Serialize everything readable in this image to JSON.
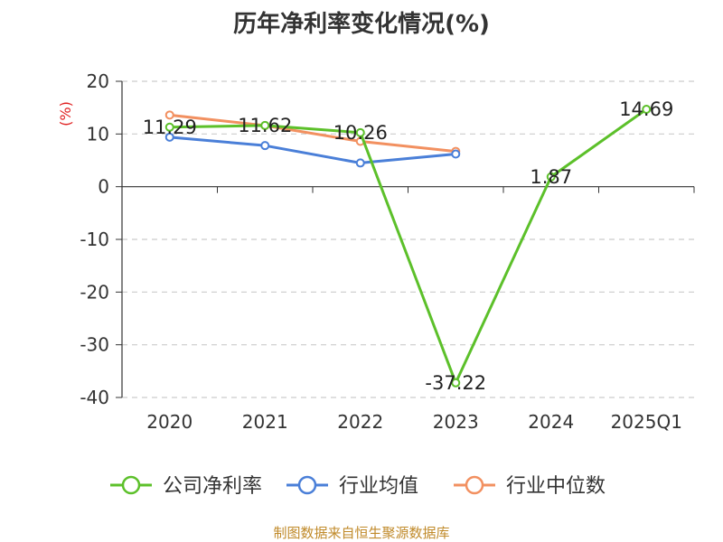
{
  "chart_data": {
    "type": "line",
    "title": "历年净利率变化情况(%)",
    "ylabel": "(%)",
    "xlabel": "",
    "categories": [
      "2020",
      "2021",
      "2022",
      "2023",
      "2024",
      "2025Q1"
    ],
    "ylim": [
      -40,
      20
    ],
    "yticks": [
      20,
      10,
      0,
      -10,
      -20,
      -30,
      -40
    ],
    "grid": true,
    "legend_position": "bottom",
    "series": [
      {
        "name": "公司净利率",
        "color": "#5cc02a",
        "values": [
          11.29,
          11.62,
          10.26,
          -37.22,
          1.87,
          14.69
        ],
        "labels": [
          "11.29",
          "11.62",
          "10.26",
          "-37.22",
          "1.87",
          "14.69"
        ]
      },
      {
        "name": "行业均值",
        "color": "#4a7fd8",
        "values": [
          9.4,
          7.8,
          4.5,
          6.2,
          null,
          null
        ]
      },
      {
        "name": "行业中位数",
        "color": "#f29060",
        "values": [
          13.6,
          11.6,
          8.6,
          6.7,
          null,
          null
        ]
      }
    ]
  },
  "source_text": "制图数据来自恒生聚源数据库"
}
